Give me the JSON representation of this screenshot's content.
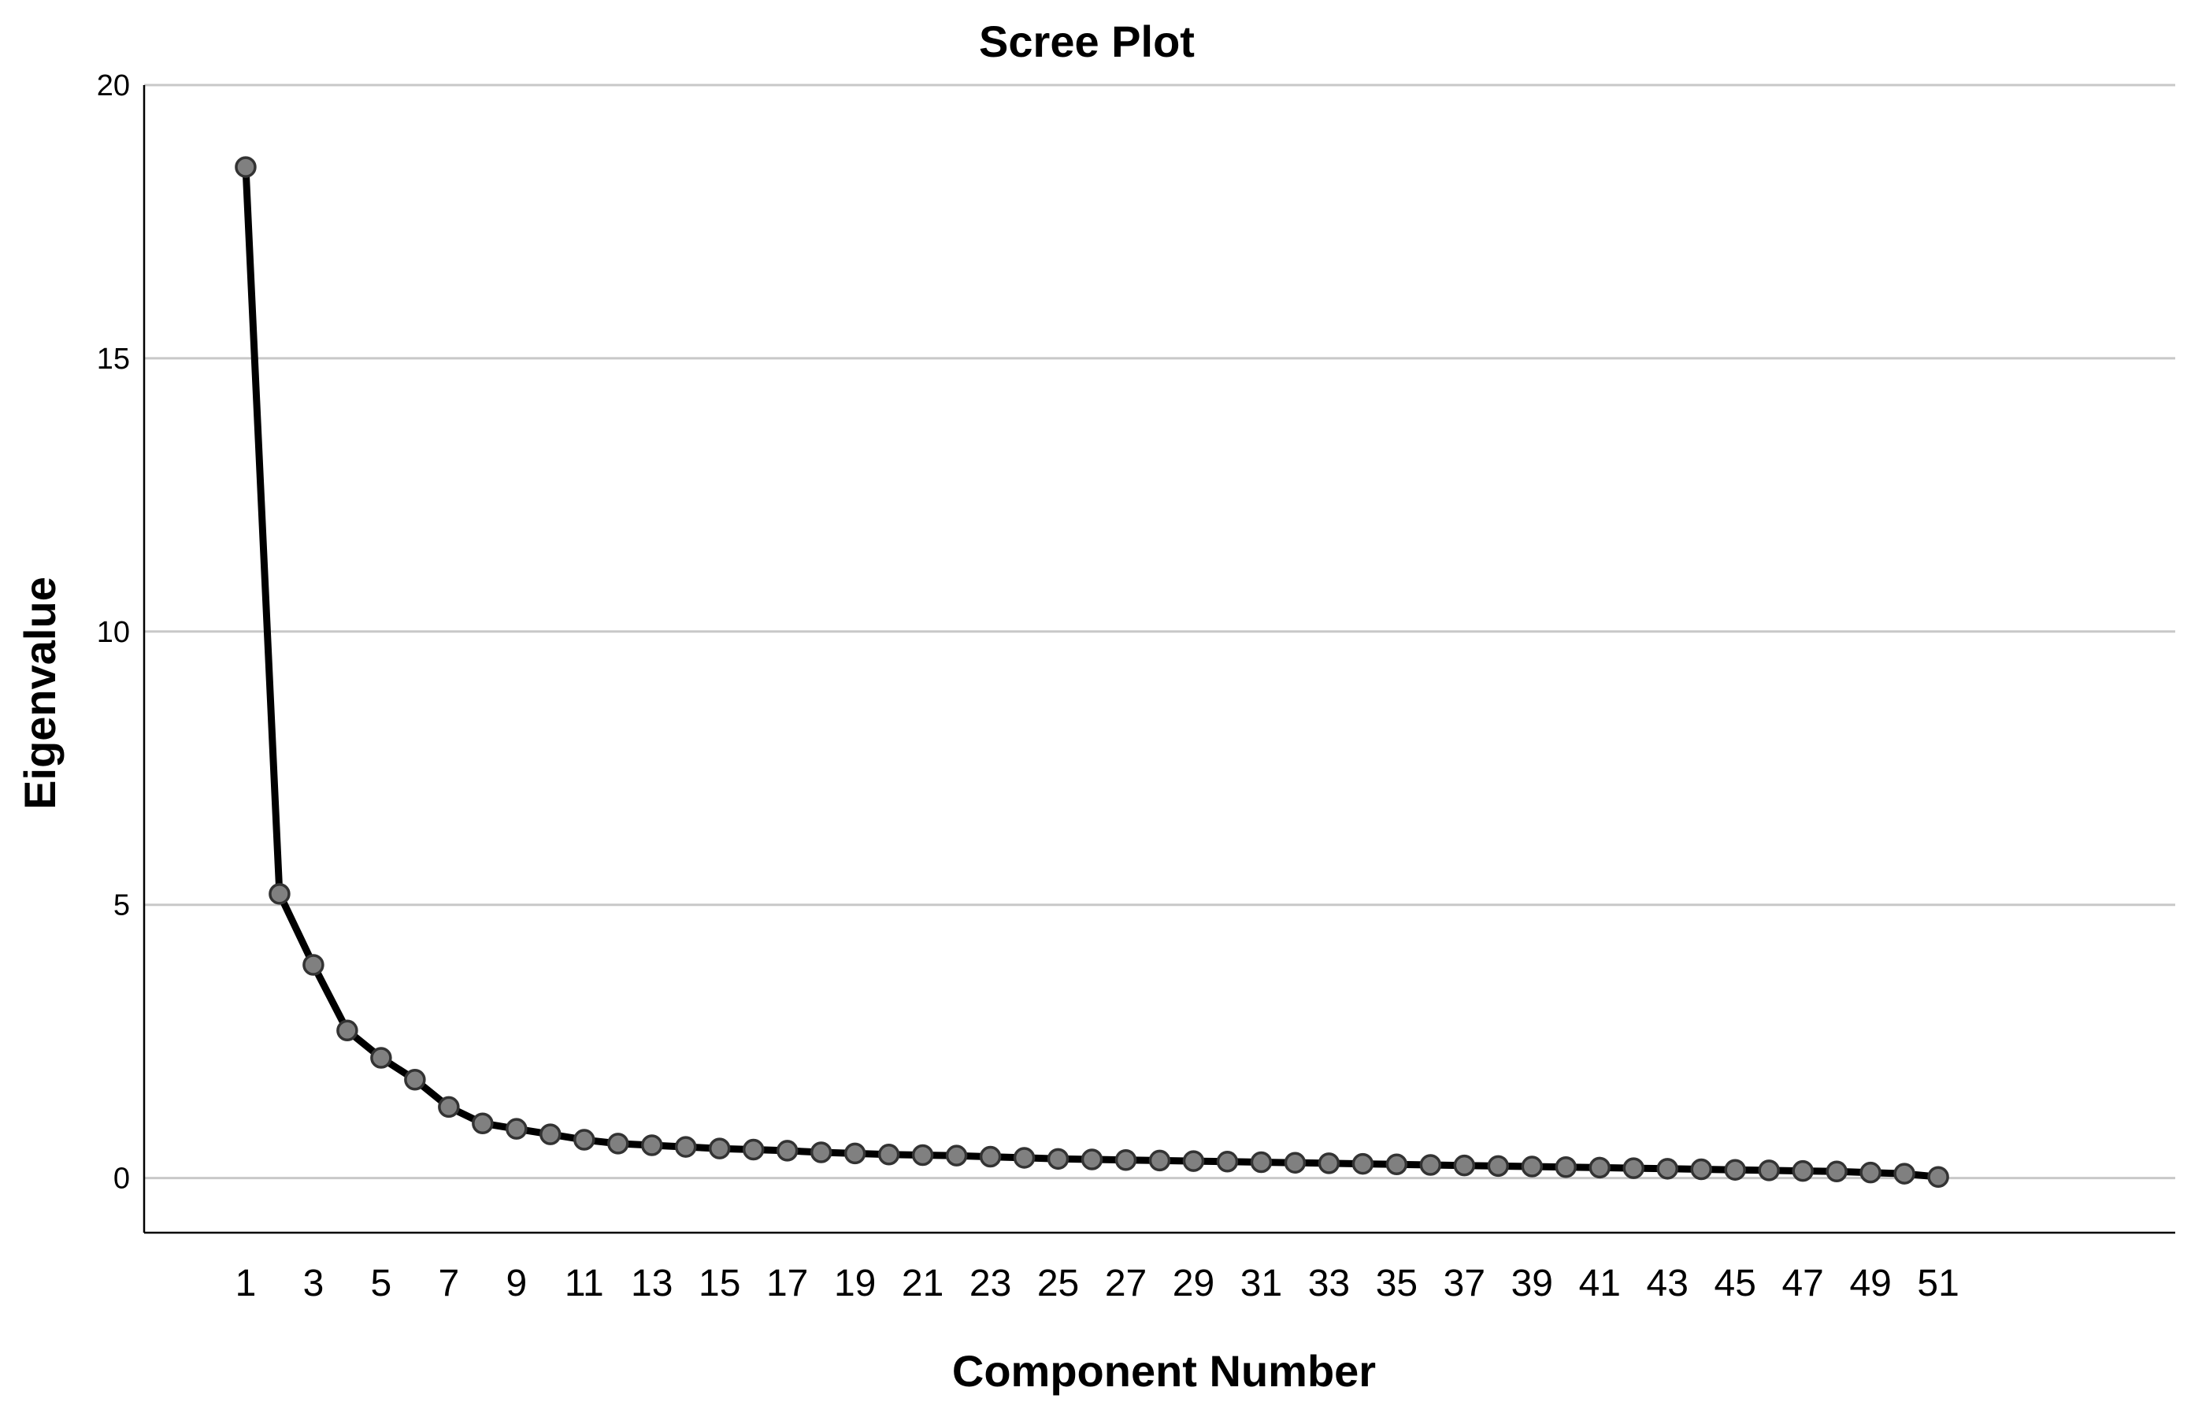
{
  "chart_data": {
    "type": "line",
    "title": "Scree Plot",
    "xlabel": "Component Number",
    "ylabel": "Eigenvalue",
    "ylim": [
      -1,
      20
    ],
    "xlim": [
      -2,
      58
    ],
    "yticks": [
      "0",
      "5",
      "10",
      "15",
      "20"
    ],
    "xtick_labels": [
      "1",
      "3",
      "5",
      "7",
      "9",
      "11",
      "13",
      "15",
      "17",
      "19",
      "21",
      "23",
      "25",
      "27",
      "29",
      "31",
      "33",
      "35",
      "37",
      "39",
      "41",
      "43",
      "45",
      "47",
      "49",
      "51"
    ],
    "grid": "horizontal",
    "colors": {
      "line": "#000000",
      "marker_fill": "#808080",
      "marker_stroke": "#333333",
      "grid": "#c8c8c8",
      "axis": "#000000"
    },
    "series": [
      {
        "x": [
          1,
          2,
          3,
          4,
          5,
          6,
          7,
          8,
          9,
          10,
          11,
          12,
          13,
          14,
          15,
          16,
          17,
          18,
          19,
          20,
          21,
          22,
          23,
          24,
          25,
          26,
          27,
          28,
          29,
          30,
          31,
          32,
          33,
          34,
          35,
          36,
          37,
          38,
          39,
          40,
          41,
          42,
          43,
          44,
          45,
          46,
          47,
          48,
          49,
          50,
          51
        ],
        "values": [
          18.5,
          5.2,
          3.9,
          2.7,
          2.2,
          1.8,
          1.3,
          1.0,
          0.9,
          0.8,
          0.7,
          0.63,
          0.6,
          0.57,
          0.54,
          0.52,
          0.5,
          0.47,
          0.45,
          0.43,
          0.42,
          0.41,
          0.39,
          0.37,
          0.35,
          0.34,
          0.33,
          0.32,
          0.31,
          0.3,
          0.29,
          0.28,
          0.27,
          0.26,
          0.25,
          0.24,
          0.23,
          0.22,
          0.21,
          0.2,
          0.19,
          0.18,
          0.17,
          0.16,
          0.15,
          0.14,
          0.13,
          0.12,
          0.1,
          0.08,
          0.02
        ]
      }
    ]
  }
}
